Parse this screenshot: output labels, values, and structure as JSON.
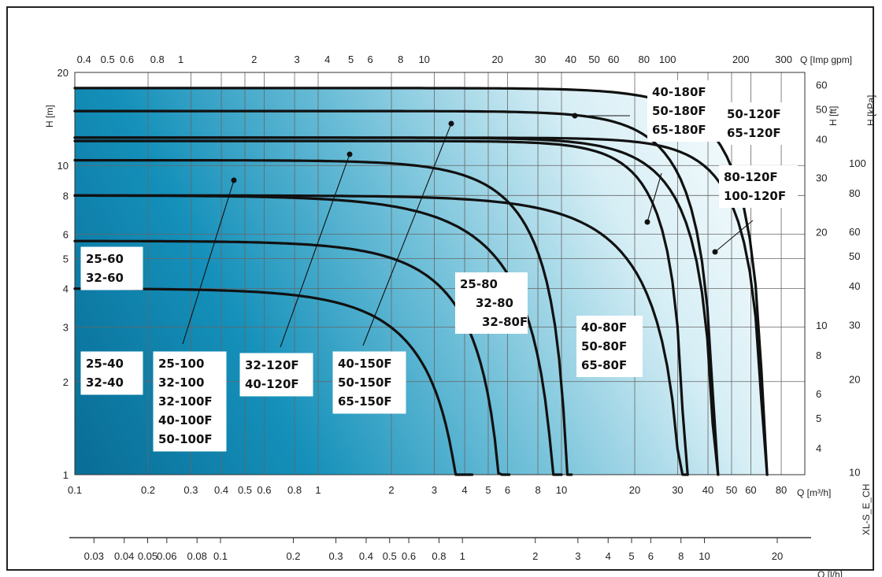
{
  "chart_data": {
    "type": "line",
    "title": "",
    "x_scale": "log",
    "y_scale": "log",
    "xlim": [
      0.1,
      100
    ],
    "ylim": [
      1,
      20
    ],
    "axes": {
      "left": {
        "label": "H [m]",
        "ticks": [
          "1",
          "2",
          "3",
          "4",
          "5",
          "6",
          "8",
          "10",
          "20"
        ]
      },
      "bottom": {
        "label": "Q [m³/h]",
        "ticks": [
          "0.1",
          "0.2",
          "0.3",
          "0.4",
          "0.5",
          "0.6",
          "0.8",
          "1",
          "2",
          "3",
          "4",
          "5",
          "6",
          "8",
          "10",
          "20",
          "30",
          "40",
          "50",
          "60",
          "80"
        ]
      },
      "top": {
        "label": "Q [Imp gpm]",
        "ticks": [
          "0.4",
          "0.5",
          "0.6",
          "0.8",
          "1",
          "2",
          "3",
          "4",
          "5",
          "6",
          "8",
          "10",
          "20",
          "30",
          "40",
          "50",
          "60",
          "80",
          "100",
          "200",
          "300"
        ]
      },
      "right_ft": {
        "label": "H [ft]",
        "ticks": [
          "4",
          "5",
          "6",
          "8",
          "10",
          "20",
          "30",
          "40",
          "50",
          "60"
        ]
      },
      "right_kpa": {
        "label": "H [kPa]",
        "ticks": [
          "10",
          "20",
          "30",
          "40",
          "50",
          "60",
          "80",
          "100"
        ]
      },
      "second_bottom": {
        "label": "Q [l/h]",
        "ticks": [
          "0.03",
          "0.04",
          "0.05",
          "0.06",
          "0.08",
          "0.1",
          "0.2",
          "0.3",
          "0.4",
          "0.5",
          "0.6",
          "0.8",
          "1",
          "2",
          "3",
          "4",
          "5",
          "6",
          "8",
          "10",
          "20"
        ]
      }
    },
    "side_code": "XL-S_E_CH",
    "grid": true,
    "legend": "none",
    "series": [
      {
        "labels": [
          "25-40",
          "32-40"
        ],
        "shut_off_head": 4.0,
        "max_flow": 4.3
      },
      {
        "labels": [
          "25-60",
          "32-60"
        ],
        "shut_off_head": 5.7,
        "max_flow": 6.1
      },
      {
        "labels": [
          "25-80",
          "32-80",
          "32-80F"
        ],
        "shut_off_head": 8.0,
        "max_flow": 10.0
      },
      {
        "labels": [
          "25-100",
          "32-100",
          "32-100F",
          "40-100F",
          "50-100F"
        ],
        "shut_off_head": 10.4,
        "max_flow": 11.0
      },
      {
        "labels": [
          "32-120F",
          "40-120F"
        ],
        "shut_off_head": 12.0,
        "max_flow": 33
      },
      {
        "labels": [
          "40-150F",
          "50-150F",
          "65-150F"
        ],
        "shut_off_head": 15.0,
        "max_flow": 44
      },
      {
        "labels": [
          "50-120F",
          "65-120F"
        ],
        "shut_off_head": 12.3,
        "max_flow": 44
      },
      {
        "labels": [
          "40-180F",
          "50-180F",
          "65-180F"
        ],
        "shut_off_head": 17.8,
        "max_flow": 70
      },
      {
        "labels": [
          "40-80F",
          "50-80F",
          "65-80F"
        ],
        "shut_off_head": 8.0,
        "max_flow": 33
      },
      {
        "labels": [
          "80-120F",
          "100-120F"
        ],
        "shut_off_head": 12.3,
        "max_flow": 70
      }
    ],
    "label_boxes": [
      {
        "id": "lbl-25-60",
        "lines": [
          "25-60",
          "32-60"
        ]
      },
      {
        "id": "lbl-25-40",
        "lines": [
          "25-40",
          "32-40"
        ]
      },
      {
        "id": "lbl-25-100",
        "lines": [
          "25-100",
          "32-100",
          "32-100F",
          "40-100F",
          "50-100F"
        ]
      },
      {
        "id": "lbl-32-120",
        "lines": [
          "32-120F",
          "40-120F"
        ]
      },
      {
        "id": "lbl-40-150",
        "lines": [
          "40-150F",
          "50-150F",
          "65-150F"
        ]
      },
      {
        "id": "lbl-25-80",
        "lines": [
          "25-80",
          "32-80",
          "32-80F"
        ]
      },
      {
        "id": "lbl-40-80",
        "lines": [
          "40-80F",
          "50-80F",
          "65-80F"
        ]
      },
      {
        "id": "lbl-40-180",
        "lines": [
          "40-180F",
          "50-180F",
          "65-180F"
        ]
      },
      {
        "id": "lbl-50-120",
        "lines": [
          "50-120F",
          "65-120F"
        ]
      },
      {
        "id": "lbl-80-120",
        "lines": [
          "80-120F",
          "100-120F"
        ]
      }
    ]
  },
  "colors": {
    "fill_dark": "#0f7ea8",
    "fill_light": "#ffffff",
    "curve": "#111111"
  }
}
